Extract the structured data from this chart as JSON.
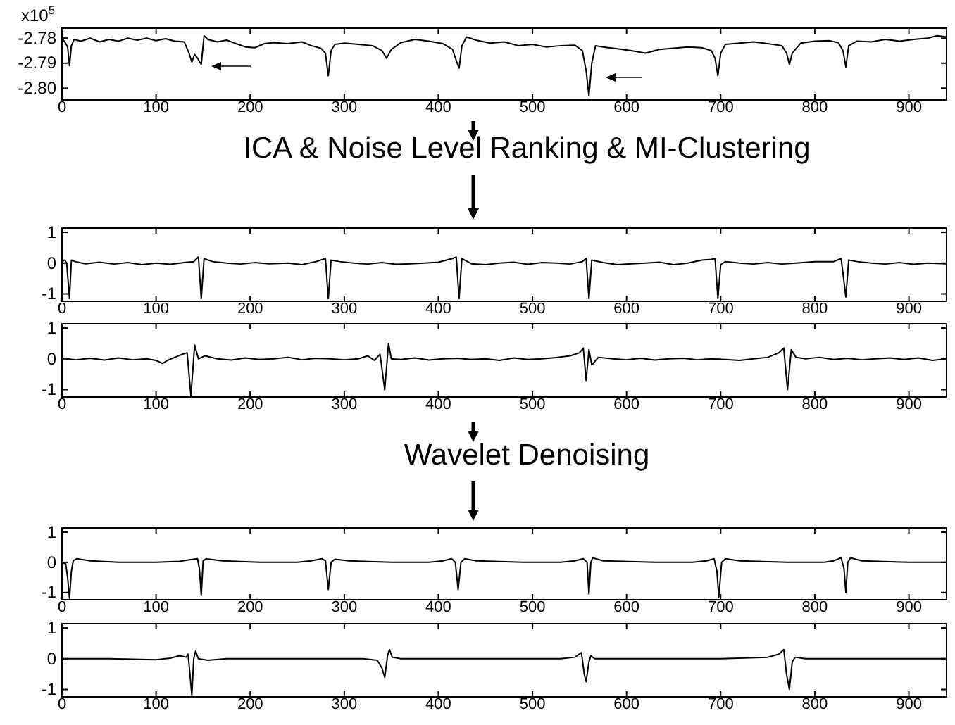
{
  "chart_data": [
    {
      "type": "line",
      "annotations": [
        "x10$^{5}$"
      ],
      "xlim": [
        0,
        940
      ],
      "xticks": [
        0,
        100,
        200,
        300,
        400,
        500,
        600,
        700,
        800,
        900
      ],
      "ylim": [
        -2.8047,
        -2.776
      ],
      "yticks": [
        {
          "value": -2.78,
          "label": "-2.78"
        },
        {
          "value": -2.79,
          "label": "-2.79"
        },
        {
          "value": -2.8,
          "label": "-2.80"
        }
      ],
      "series": [
        {
          "color": "#000000",
          "x": [
            0,
            3,
            6,
            8,
            10,
            13,
            20,
            30,
            40,
            50,
            60,
            70,
            80,
            90,
            100,
            110,
            120,
            130,
            135,
            138,
            141,
            144,
            148,
            151,
            155,
            165,
            175,
            185,
            195,
            205,
            215,
            225,
            240,
            255,
            265,
            275,
            280,
            283,
            286,
            290,
            300,
            315,
            330,
            340,
            345,
            350,
            360,
            375,
            390,
            405,
            415,
            420,
            422,
            425,
            430,
            440,
            455,
            470,
            485,
            500,
            515,
            530,
            545,
            553,
            557,
            560,
            563,
            567,
            575,
            590,
            605,
            620,
            635,
            650,
            665,
            680,
            690,
            694,
            697,
            700,
            705,
            720,
            735,
            750,
            765,
            770,
            773,
            776,
            785,
            800,
            815,
            825,
            830,
            833,
            836,
            845,
            860,
            875,
            890,
            905,
            920,
            930,
            940
          ],
          "values": [
            -2.78,
            -2.7815,
            -2.7835,
            -2.791,
            -2.783,
            -2.7805,
            -2.7812,
            -2.78,
            -2.7815,
            -2.7805,
            -2.7812,
            -2.78,
            -2.7808,
            -2.78,
            -2.781,
            -2.7802,
            -2.7812,
            -2.7815,
            -2.786,
            -2.7895,
            -2.7865,
            -2.788,
            -2.7905,
            -2.779,
            -2.7805,
            -2.7815,
            -2.7808,
            -2.7822,
            -2.7835,
            -2.7838,
            -2.7822,
            -2.7818,
            -2.7822,
            -2.7815,
            -2.783,
            -2.784,
            -2.786,
            -2.795,
            -2.785,
            -2.7825,
            -2.782,
            -2.7825,
            -2.783,
            -2.785,
            -2.788,
            -2.7845,
            -2.7818,
            -2.7805,
            -2.7812,
            -2.7822,
            -2.7845,
            -2.79,
            -2.792,
            -2.783,
            -2.7795,
            -2.7808,
            -2.782,
            -2.7815,
            -2.783,
            -2.7825,
            -2.7835,
            -2.783,
            -2.7828,
            -2.785,
            -2.793,
            -2.803,
            -2.79,
            -2.783,
            -2.7835,
            -2.7842,
            -2.785,
            -2.786,
            -2.7845,
            -2.784,
            -2.7835,
            -2.7838,
            -2.785,
            -2.788,
            -2.795,
            -2.786,
            -2.7825,
            -2.782,
            -2.7815,
            -2.7822,
            -2.783,
            -2.786,
            -2.7905,
            -2.786,
            -2.782,
            -2.7812,
            -2.781,
            -2.7818,
            -2.785,
            -2.7915,
            -2.783,
            -2.7812,
            -2.7815,
            -2.7805,
            -2.7812,
            -2.7805,
            -2.78,
            -2.779,
            -2.7795
          ]
        }
      ]
    },
    {
      "type": "line",
      "title": "ICA & Noise Level Ranking & MI-Clustering",
      "xlim": [
        0,
        940
      ],
      "xticks": [
        0,
        100,
        200,
        300,
        400,
        500,
        600,
        700,
        800,
        900
      ],
      "ylim": [
        -1.24,
        1.14
      ],
      "yticks": [
        -1,
        0,
        1
      ],
      "series": [
        {
          "color": "#000000",
          "x": [
            0,
            3,
            5,
            8,
            10,
            14,
            25,
            40,
            55,
            70,
            85,
            100,
            115,
            130,
            140,
            145,
            148,
            151,
            160,
            175,
            190,
            205,
            220,
            240,
            255,
            270,
            280,
            283,
            286,
            295,
            310,
            325,
            340,
            355,
            370,
            385,
            400,
            415,
            419,
            422,
            425,
            435,
            450,
            465,
            480,
            495,
            510,
            525,
            540,
            553,
            557,
            560,
            563,
            575,
            590,
            605,
            620,
            635,
            650,
            665,
            680,
            690,
            694,
            697,
            700,
            705,
            720,
            735,
            750,
            765,
            780,
            800,
            820,
            828,
            833,
            836,
            845,
            860,
            875,
            890,
            905,
            920,
            940
          ],
          "values": [
            0.05,
            0.1,
            0,
            -1.15,
            0.1,
            0.05,
            -0.02,
            0.03,
            -0.03,
            0.02,
            -0.05,
            0,
            -0.04,
            0.02,
            0.05,
            0.2,
            -1.15,
            0.15,
            0.05,
            0,
            -0.03,
            0.02,
            -0.02,
            0,
            -0.05,
            0.05,
            0.15,
            -1.15,
            0.1,
            0.05,
            0,
            -0.03,
            0.02,
            -0.04,
            -0.02,
            0,
            0.03,
            0.15,
            0.2,
            -1.15,
            0.15,
            -0.02,
            -0.05,
            0,
            0.03,
            -0.04,
            0.02,
            0,
            -0.03,
            0.05,
            0.15,
            -1.15,
            0.1,
            0.02,
            -0.05,
            -0.02,
            0,
            0.03,
            -0.05,
            0,
            0.1,
            0.12,
            0.15,
            -1.15,
            -0.05,
            0.05,
            0,
            -0.03,
            0.02,
            -0.03,
            0,
            0.05,
            0.05,
            0.15,
            -1.1,
            0.1,
            0.05,
            0,
            -0.03,
            0.02,
            -0.04,
            0,
            -0.02
          ]
        }
      ]
    },
    {
      "type": "line",
      "xlim": [
        0,
        940
      ],
      "xticks": [
        0,
        100,
        200,
        300,
        400,
        500,
        600,
        700,
        800,
        900
      ],
      "ylim": [
        -1.24,
        1.14
      ],
      "yticks": [
        -1,
        0,
        1
      ],
      "series": [
        {
          "color": "#000000",
          "x": [
            0,
            15,
            30,
            45,
            60,
            75,
            90,
            100,
            107,
            112,
            120,
            128,
            133,
            137,
            141,
            145,
            152,
            165,
            180,
            195,
            210,
            225,
            240,
            255,
            270,
            285,
            300,
            315,
            325,
            332,
            338,
            343,
            347,
            350,
            360,
            375,
            390,
            405,
            420,
            435,
            450,
            465,
            480,
            495,
            510,
            525,
            540,
            550,
            554,
            557,
            560,
            563,
            570,
            585,
            600,
            615,
            630,
            645,
            660,
            675,
            690,
            705,
            720,
            735,
            750,
            762,
            767,
            771,
            775,
            780,
            790,
            805,
            820,
            835,
            850,
            865,
            880,
            895,
            910,
            925,
            940
          ],
          "values": [
            0.02,
            -0.03,
            0.02,
            -0.04,
            0.03,
            -0.03,
            0,
            -0.05,
            -0.15,
            -0.05,
            0.05,
            0.15,
            0.2,
            -1.2,
            0.45,
            0,
            0.1,
            0,
            -0.04,
            0.03,
            -0.02,
            0,
            0.05,
            -0.03,
            0.02,
            0,
            -0.03,
            0,
            0.1,
            -0.05,
            0.15,
            -1,
            0.5,
            0,
            -0.02,
            0.03,
            -0.04,
            0,
            0.02,
            -0.02,
            0,
            -0.05,
            0.03,
            -0.02,
            0,
            0.04,
            0.1,
            0.2,
            0.35,
            -0.7,
            0.3,
            -0.2,
            0.05,
            0,
            -0.03,
            0.02,
            -0.04,
            0,
            0.02,
            -0.03,
            0,
            -0.02,
            -0.05,
            0,
            0.05,
            0.2,
            0.35,
            -1,
            0.3,
            0.05,
            0,
            0.05,
            -0.02,
            0.02,
            -0.03,
            0,
            0.03,
            -0.02,
            0.03,
            -0.05,
            0
          ]
        }
      ]
    },
    {
      "type": "line",
      "title": "Wavelet Denoising",
      "xlim": [
        0,
        940
      ],
      "xticks": [
        0,
        100,
        200,
        300,
        400,
        500,
        600,
        700,
        800,
        900
      ],
      "ylim": [
        -1.24,
        1.14
      ],
      "yticks": [
        -1,
        0,
        1
      ],
      "series": [
        {
          "color": "#000000",
          "x": [
            0,
            4,
            6,
            8,
            10,
            12,
            16,
            30,
            60,
            100,
            125,
            139,
            144,
            146,
            148,
            150,
            153,
            170,
            210,
            250,
            265,
            276,
            280,
            283,
            286,
            290,
            305,
            350,
            390,
            405,
            414,
            418,
            421,
            424,
            428,
            440,
            490,
            530,
            545,
            554,
            558,
            560,
            562,
            564,
            575,
            630,
            670,
            685,
            693,
            696,
            698,
            701,
            705,
            720,
            770,
            810,
            820,
            828,
            831,
            833,
            835,
            838,
            850,
            900,
            940
          ],
          "values": [
            0,
            -0.05,
            -0.5,
            -1.2,
            -0.3,
            0.05,
            0.12,
            0.05,
            0,
            0,
            0.03,
            0.1,
            0.12,
            -0.2,
            -1.1,
            0.05,
            0.12,
            0.05,
            0,
            0,
            0.05,
            0.12,
            0.05,
            -0.9,
            0,
            0.1,
            0.05,
            0,
            0,
            0.05,
            0.12,
            0,
            -0.9,
            0,
            0.12,
            0.05,
            0,
            0,
            0.05,
            0.12,
            0,
            -1.05,
            0,
            0.15,
            0.05,
            0,
            0,
            0.05,
            0.12,
            -0.3,
            -1.15,
            0,
            0.12,
            0.05,
            0,
            0,
            0.05,
            0.15,
            -0.2,
            -1,
            0,
            0.15,
            0.05,
            0,
            0
          ]
        }
      ]
    },
    {
      "type": "line",
      "xlim": [
        0,
        940
      ],
      "xticks": [
        0,
        100,
        200,
        300,
        400,
        500,
        600,
        700,
        800,
        900
      ],
      "ylim": [
        -1.24,
        1.14
      ],
      "yticks": [
        -1,
        0,
        1
      ],
      "series": [
        {
          "color": "#000000",
          "x": [
            0,
            50,
            100,
            115,
            125,
            132,
            134,
            136,
            138,
            140,
            142,
            145,
            155,
            175,
            250,
            320,
            335,
            340,
            343,
            346,
            348,
            351,
            360,
            450,
            530,
            545,
            552,
            555,
            557,
            560,
            562,
            566,
            580,
            700,
            750,
            762,
            767,
            770,
            773,
            776,
            779,
            790,
            940
          ],
          "values": [
            0,
            0,
            -0.03,
            0.02,
            0.1,
            0.05,
            0.15,
            -0.5,
            -1.2,
            0,
            0.25,
            0,
            -0.05,
            0,
            0,
            0,
            -0.05,
            -0.3,
            -0.6,
            0.1,
            0.3,
            0.05,
            0,
            0,
            0,
            0.05,
            0.2,
            -0.5,
            -0.75,
            -0.1,
            0.1,
            0,
            0,
            0,
            0.05,
            0.15,
            0.3,
            -0.5,
            -1,
            -0.1,
            0.05,
            0,
            0
          ]
        }
      ]
    }
  ]
}
